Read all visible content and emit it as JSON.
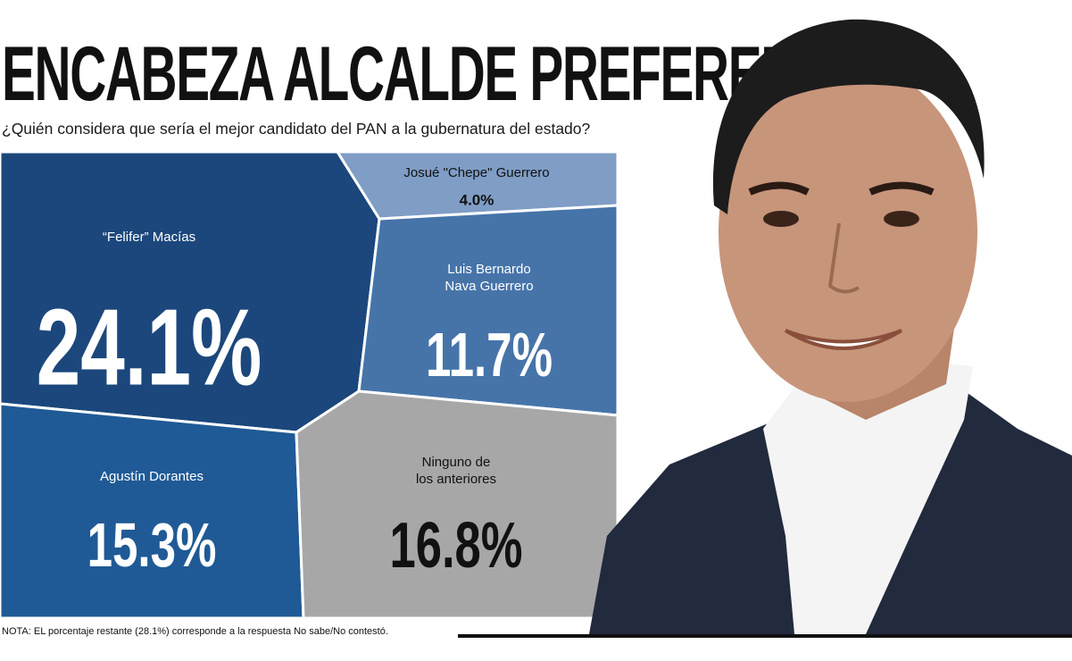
{
  "header": {
    "title": "ENCABEZA ALCALDE PREFERENCIAS",
    "subtitle": "¿Quién considera que sería el mejor candidato del PAN a la gubernatura del estado?"
  },
  "chart_data": {
    "type": "treemap",
    "unit": "%",
    "items": [
      {
        "name": "“Felifer” Macías",
        "name_lines": [
          "“Felifer” Macías"
        ],
        "value": 24.1,
        "label": "24.1%",
        "color": "#1b477c"
      },
      {
        "name": "Josué \"Chepe\" Guerrero",
        "name_lines": [
          "Josué \"Chepe\" Guerrero"
        ],
        "value": 4.0,
        "label": "4.0%",
        "color": "#7f9dc5"
      },
      {
        "name": "Luis Bernardo Nava Guerrero",
        "name_lines": [
          "Luis Bernardo",
          "Nava Guerrero"
        ],
        "value": 11.7,
        "label": "11.7%",
        "color": "#4674a9"
      },
      {
        "name": "Agustín Dorantes",
        "name_lines": [
          "Agustín Dorantes"
        ],
        "value": 15.3,
        "label": "15.3%",
        "color": "#1f5a96"
      },
      {
        "name": "Ninguno de los anteriores",
        "name_lines": [
          "Ninguno de",
          "los anteriores"
        ],
        "value": 16.8,
        "label": "16.8%",
        "color": "#a7a7a7"
      }
    ]
  },
  "footer": {
    "note": "NOTA: EL porcentaje restante (28.1%) corresponde a la respuesta No sabe/No contestó."
  },
  "colors": {
    "title": "#111111",
    "suit": "#222a3d",
    "shirt": "#f4f4f4",
    "skin": "#c7957a",
    "hair": "#1c1c1c"
  },
  "icons": {
    "portrait": "man-portrait-photo"
  }
}
